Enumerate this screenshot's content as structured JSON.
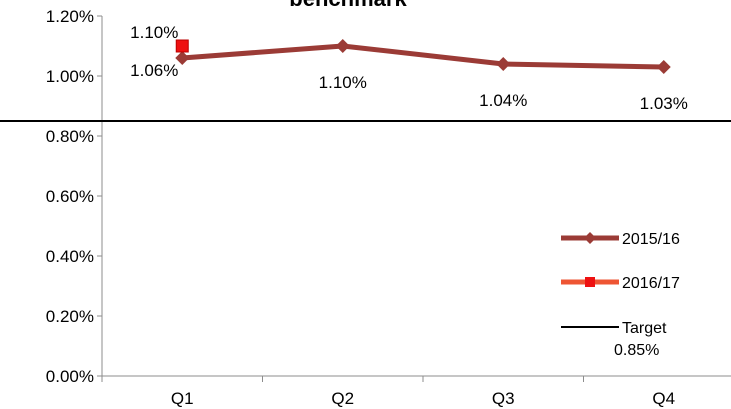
{
  "chart_data": {
    "type": "line",
    "title": "benchmark",
    "categories": [
      "Q1",
      "Q2",
      "Q3",
      "Q4"
    ],
    "ylim": [
      0,
      1.2
    ],
    "yticks": [
      "0.00%",
      "0.20%",
      "0.40%",
      "0.60%",
      "0.80%",
      "1.00%",
      "1.20%"
    ],
    "series": [
      {
        "name": "2015/16",
        "values": [
          1.06,
          1.1,
          1.04,
          1.03
        ],
        "labels": [
          "1.06%",
          "1.10%",
          "1.04%",
          "1.03%"
        ],
        "color": "#9b3b36",
        "marker": "diamond"
      },
      {
        "name": "2016/17",
        "values": [
          1.1,
          null,
          null,
          null
        ],
        "labels": [
          "1.10%",
          "",
          "",
          ""
        ],
        "color": "#ee5533",
        "marker_color": "#ee1111",
        "marker": "square"
      }
    ],
    "target": {
      "name": "Target",
      "label": "0.85%",
      "value": 0.85,
      "color": "#000000"
    },
    "legend_position": "right",
    "grid": false
  }
}
